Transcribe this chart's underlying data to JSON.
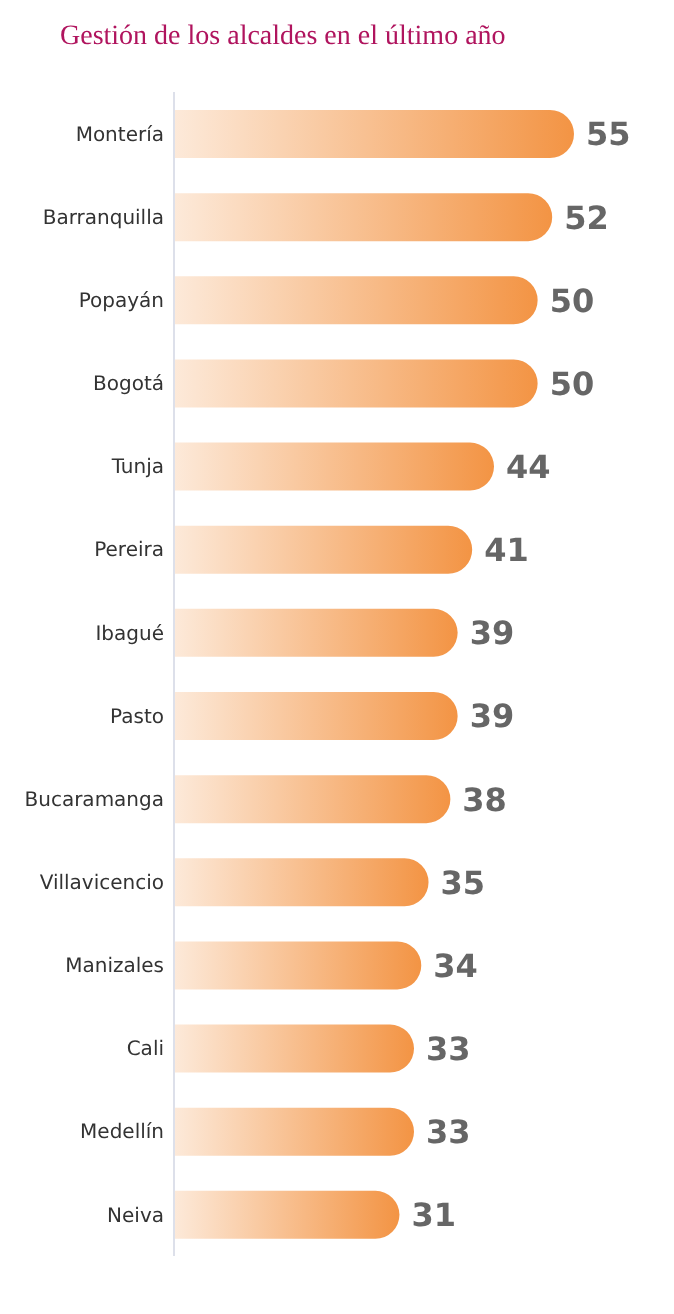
{
  "chart_data": {
    "type": "bar",
    "orientation": "horizontal",
    "title": "Gestión de los alcaldes en el último año",
    "categories": [
      "Montería",
      "Barranquilla",
      "Popayán",
      "Bogotá",
      "Tunja",
      "Pereira",
      "Ibagué",
      "Pasto",
      "Bucaramanga",
      "Villavicencio",
      "Manizales",
      "Cali",
      "Medellín",
      "Neiva"
    ],
    "values": [
      55,
      52,
      50,
      50,
      44,
      41,
      39,
      39,
      38,
      35,
      34,
      33,
      33,
      31
    ],
    "color": "#f39444",
    "data_labels": true
  }
}
